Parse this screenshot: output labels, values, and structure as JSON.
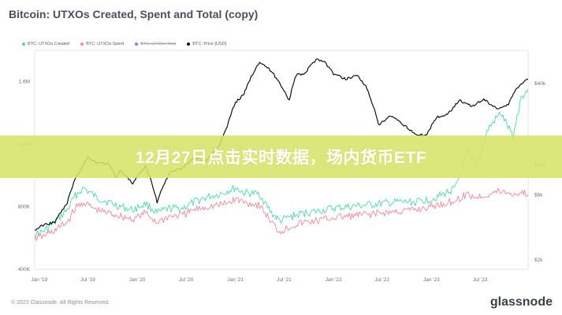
{
  "header": {
    "title": "Bitcoin: UTXOs Created, Spent and Total (copy)"
  },
  "legend": [
    {
      "label": "BTC: UTXOs Created",
      "color": "#4fd7a9",
      "enabled": true
    },
    {
      "label": "BTC: UTXOs Spent",
      "color": "#f08a96",
      "enabled": true
    },
    {
      "label": "BTC: UTXOs Total",
      "color": "#7a86e8",
      "enabled": false
    },
    {
      "label": "BTC: Price [USD]",
      "color": "#111111",
      "enabled": true
    }
  ],
  "banner": {
    "text": "12月27日点击实时数据，场内货币ETF"
  },
  "footer": {
    "copyright": "© 2023 Glassnode. All Rights Reserved.",
    "brand": "glassnode"
  },
  "chart_data": {
    "type": "line",
    "x_tick_labels": [
      "Jan '19",
      "Jul '19",
      "Jan '20",
      "Jul '20",
      "Jan '21",
      "Jul '21",
      "Jan '22",
      "Jul '22",
      "Jan '23",
      "Jul '23"
    ],
    "y_left_ticks": [
      "400K",
      "800K",
      "1.2M",
      "1.6M"
    ],
    "y_left_values": [
      400000,
      800000,
      1200000,
      1600000
    ],
    "y_left_range": [
      400000,
      1800000
    ],
    "y_right_ticks": [
      "$2k",
      "$6k",
      "$10k",
      "$40k"
    ],
    "y_right_values": [
      2000,
      6000,
      10000,
      40000
    ],
    "y_right_scale": "log",
    "y_right_range": [
      1700,
      70000
    ],
    "x_range": [
      "2018-12-15",
      "2023-12-27"
    ],
    "series": [
      {
        "name": "BTC: UTXOs Created",
        "color": "#4fd7a9",
        "axis": "left",
        "points": [
          [
            "2018-12-15",
            620000
          ],
          [
            "2019-01-15",
            640000
          ],
          [
            "2019-03-01",
            700000
          ],
          [
            "2019-04-15",
            780000
          ],
          [
            "2019-05-15",
            870000
          ],
          [
            "2019-06-15",
            920000
          ],
          [
            "2019-07-01",
            900000
          ],
          [
            "2019-08-01",
            860000
          ],
          [
            "2019-09-15",
            830000
          ],
          [
            "2019-11-01",
            800000
          ],
          [
            "2019-12-15",
            780000
          ],
          [
            "2020-02-01",
            820000
          ],
          [
            "2020-03-15",
            760000
          ],
          [
            "2020-05-01",
            790000
          ],
          [
            "2020-06-15",
            790000
          ],
          [
            "2020-08-01",
            830000
          ],
          [
            "2020-09-15",
            860000
          ],
          [
            "2020-11-01",
            880000
          ],
          [
            "2020-12-01",
            900000
          ],
          [
            "2021-01-01",
            920000
          ],
          [
            "2021-02-01",
            890000
          ],
          [
            "2021-04-01",
            880000
          ],
          [
            "2021-05-15",
            760000
          ],
          [
            "2021-06-15",
            710000
          ],
          [
            "2021-08-01",
            740000
          ],
          [
            "2021-09-15",
            760000
          ],
          [
            "2021-11-01",
            770000
          ],
          [
            "2022-01-01",
            790000
          ],
          [
            "2022-03-01",
            800000
          ],
          [
            "2022-05-01",
            810000
          ],
          [
            "2022-07-01",
            820000
          ],
          [
            "2022-09-01",
            830000
          ],
          [
            "2022-11-01",
            830000
          ],
          [
            "2023-01-01",
            850000
          ],
          [
            "2023-02-15",
            880000
          ],
          [
            "2023-04-01",
            920000
          ],
          [
            "2023-05-15",
            1150000
          ],
          [
            "2023-06-15",
            1050000
          ],
          [
            "2023-08-01",
            1300000
          ],
          [
            "2023-09-15",
            1400000
          ],
          [
            "2023-11-01",
            1250000
          ],
          [
            "2023-12-01",
            1500000
          ],
          [
            "2023-12-27",
            1550000
          ]
        ]
      },
      {
        "name": "BTC: UTXOs Spent",
        "color": "#f08a96",
        "axis": "left",
        "points": [
          [
            "2018-12-15",
            600000
          ],
          [
            "2019-01-15",
            610000
          ],
          [
            "2019-03-01",
            650000
          ],
          [
            "2019-04-15",
            700000
          ],
          [
            "2019-05-15",
            790000
          ],
          [
            "2019-06-15",
            830000
          ],
          [
            "2019-07-01",
            810000
          ],
          [
            "2019-08-01",
            780000
          ],
          [
            "2019-09-15",
            760000
          ],
          [
            "2019-11-01",
            740000
          ],
          [
            "2019-12-15",
            720000
          ],
          [
            "2020-02-01",
            760000
          ],
          [
            "2020-03-15",
            700000
          ],
          [
            "2020-05-01",
            740000
          ],
          [
            "2020-06-15",
            745000
          ],
          [
            "2020-08-01",
            780000
          ],
          [
            "2020-09-15",
            800000
          ],
          [
            "2020-11-01",
            810000
          ],
          [
            "2020-12-01",
            820000
          ],
          [
            "2021-01-01",
            850000
          ],
          [
            "2021-02-01",
            830000
          ],
          [
            "2021-04-01",
            810000
          ],
          [
            "2021-05-15",
            700000
          ],
          [
            "2021-06-15",
            640000
          ],
          [
            "2021-08-01",
            680000
          ],
          [
            "2021-09-15",
            700000
          ],
          [
            "2021-11-01",
            710000
          ],
          [
            "2022-01-01",
            730000
          ],
          [
            "2022-03-01",
            740000
          ],
          [
            "2022-05-01",
            750000
          ],
          [
            "2022-07-01",
            760000
          ],
          [
            "2022-09-01",
            770000
          ],
          [
            "2022-11-01",
            780000
          ],
          [
            "2023-01-01",
            800000
          ],
          [
            "2023-02-15",
            820000
          ],
          [
            "2023-04-01",
            840000
          ],
          [
            "2023-05-15",
            880000
          ],
          [
            "2023-06-15",
            860000
          ],
          [
            "2023-08-01",
            880000
          ],
          [
            "2023-09-15",
            900000
          ],
          [
            "2023-11-01",
            880000
          ],
          [
            "2023-12-01",
            890000
          ],
          [
            "2023-12-27",
            880000
          ]
        ]
      },
      {
        "name": "BTC: Price [USD]",
        "color": "#111111",
        "axis": "right",
        "points": [
          [
            "2018-12-15",
            3300
          ],
          [
            "2019-01-15",
            3600
          ],
          [
            "2019-03-01",
            3800
          ],
          [
            "2019-04-15",
            5200
          ],
          [
            "2019-05-15",
            7900
          ],
          [
            "2019-06-15",
            10000
          ],
          [
            "2019-07-01",
            11500
          ],
          [
            "2019-08-01",
            10400
          ],
          [
            "2019-09-15",
            10200
          ],
          [
            "2019-10-15",
            8200
          ],
          [
            "2019-11-01",
            9200
          ],
          [
            "2019-12-15",
            7200
          ],
          [
            "2020-02-01",
            9800
          ],
          [
            "2020-03-15",
            5300
          ],
          [
            "2020-05-01",
            8800
          ],
          [
            "2020-06-15",
            9400
          ],
          [
            "2020-08-01",
            11300
          ],
          [
            "2020-09-15",
            10800
          ],
          [
            "2020-11-01",
            13800
          ],
          [
            "2020-12-01",
            19000
          ],
          [
            "2021-01-01",
            29000
          ],
          [
            "2021-02-01",
            33000
          ],
          [
            "2021-04-01",
            58000
          ],
          [
            "2021-05-15",
            49000
          ],
          [
            "2021-06-15",
            40000
          ],
          [
            "2021-07-20",
            30000
          ],
          [
            "2021-08-15",
            46000
          ],
          [
            "2021-09-15",
            47000
          ],
          [
            "2021-11-01",
            61000
          ],
          [
            "2021-12-01",
            57000
          ],
          [
            "2022-01-01",
            47000
          ],
          [
            "2022-02-15",
            43000
          ],
          [
            "2022-03-31",
            46000
          ],
          [
            "2022-05-01",
            38000
          ],
          [
            "2022-06-18",
            19500
          ],
          [
            "2022-08-01",
            23000
          ],
          [
            "2022-09-15",
            20000
          ],
          [
            "2022-11-10",
            16500
          ],
          [
            "2022-12-15",
            16800
          ],
          [
            "2023-01-20",
            22500
          ],
          [
            "2023-03-01",
            23500
          ],
          [
            "2023-04-15",
            30000
          ],
          [
            "2023-06-01",
            27000
          ],
          [
            "2023-07-15",
            30500
          ],
          [
            "2023-09-01",
            26000
          ],
          [
            "2023-10-15",
            28000
          ],
          [
            "2023-11-15",
            37000
          ],
          [
            "2023-12-15",
            42000
          ],
          [
            "2023-12-27",
            43000
          ]
        ]
      }
    ]
  }
}
